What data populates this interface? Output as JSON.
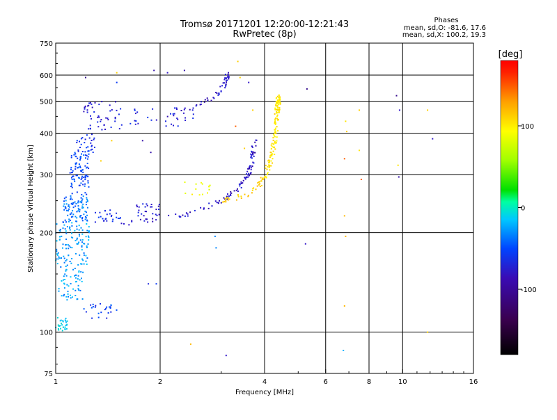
{
  "chart_data": {
    "type": "scatter",
    "title": "Tromsø 20171201 12:20:00-12:21:43",
    "subtitle": "RwPretec (8p)",
    "stats": {
      "heading": "Phases",
      "line1": "mean, sd,O: -81.6, 17.6",
      "line2": "mean, sd,X: 100.2, 19.3"
    },
    "xlabel": "Frequency [MHz]",
    "ylabel": "Stationary phase Virtual Height [km]",
    "x_scale": "log",
    "y_scale": "log",
    "xlim": [
      1,
      16
    ],
    "ylim": [
      75,
      750
    ],
    "grid": true,
    "x_ticks": [
      {
        "v": 1,
        "label": "1"
      },
      {
        "v": 2,
        "label": "2"
      },
      {
        "v": 4,
        "label": "4"
      },
      {
        "v": 6,
        "label": "6"
      },
      {
        "v": 8,
        "label": "8"
      },
      {
        "v": 10,
        "label": "10"
      },
      {
        "v": 16,
        "label": "16"
      }
    ],
    "x_grid": [
      2,
      4,
      6,
      8,
      10
    ],
    "y_ticks": [
      {
        "v": 75,
        "label": "75"
      },
      {
        "v": 100,
        "label": "100"
      },
      {
        "v": 200,
        "label": "200"
      },
      {
        "v": 300,
        "label": "300"
      },
      {
        "v": 400,
        "label": "400"
      },
      {
        "v": 500,
        "label": "500"
      },
      {
        "v": 600,
        "label": "600"
      },
      {
        "v": 750,
        "label": "750"
      }
    ],
    "y_grid": [
      100,
      200,
      300,
      400,
      500,
      600
    ],
    "colorbar": {
      "label": "[deg]",
      "range": [
        -180,
        180
      ],
      "ticks": [
        {
          "v": 100,
          "label": "100"
        },
        {
          "v": 0,
          "label": "0"
        },
        {
          "v": -100,
          "label": "-100"
        }
      ],
      "colormap": "rainbow-black-violet-blue-cyan-green-yellow-orange-red"
    },
    "clusters": [
      {
        "f": [
          1.0,
          1.08
        ],
        "h": [
          100,
          112
        ],
        "phase": -40,
        "spread_phase": 10,
        "n": 30
      },
      {
        "f": [
          1.02,
          1.2
        ],
        "h": [
          125,
          160
        ],
        "phase": -55,
        "spread_phase": 12,
        "n": 60
      },
      {
        "f": [
          1.0,
          1.25
        ],
        "h": [
          160,
          215
        ],
        "phase": -55,
        "spread_phase": 12,
        "n": 110
      },
      {
        "f": [
          1.05,
          1.25
        ],
        "h": [
          215,
          260
        ],
        "phase": -65,
        "spread_phase": 12,
        "n": 90
      },
      {
        "f": [
          1.1,
          1.25
        ],
        "h": [
          260,
          350
        ],
        "phase": -75,
        "spread_phase": 10,
        "n": 90
      },
      {
        "f": [
          1.15,
          1.3
        ],
        "h": [
          350,
          400
        ],
        "phase": -85,
        "spread_phase": 10,
        "n": 30
      },
      {
        "f": [
          1.2,
          1.55
        ],
        "h": [
          410,
          500
        ],
        "phase": -95,
        "spread_phase": 10,
        "n": 50
      },
      {
        "f": [
          1.2,
          1.5
        ],
        "h": [
          110,
          122
        ],
        "phase": -80,
        "spread_phase": 15,
        "n": 25
      },
      {
        "f": [
          1.3,
          1.55
        ],
        "h": [
          215,
          235
        ],
        "phase": -85,
        "spread_phase": 10,
        "n": 25
      },
      {
        "f": [
          1.6,
          2.5
        ],
        "h": [
          420,
          480
        ],
        "phase": -90,
        "spread_phase": 10,
        "n": 30
      },
      {
        "f": [
          1.7,
          2.0
        ],
        "h": [
          225,
          245
        ],
        "phase": -95,
        "spread_phase": 10,
        "n": 25
      },
      {
        "f": [
          2.3,
          2.8
        ],
        "h": [
          260,
          290
        ],
        "phase": 85,
        "spread_phase": 15,
        "n": 14
      }
    ],
    "curves": [
      {
        "name": "o-lower",
        "pts": [
          [
            1.55,
            213
          ],
          [
            2.0,
            220
          ],
          [
            2.5,
            230
          ],
          [
            3.0,
            250
          ],
          [
            3.4,
            275
          ],
          [
            3.6,
            300
          ],
          [
            3.7,
            340
          ],
          [
            3.75,
            380
          ]
        ],
        "phase": -100,
        "spread_phase": 12,
        "n": 110
      },
      {
        "name": "x-lower",
        "pts": [
          [
            3.0,
            250
          ],
          [
            3.3,
            255
          ],
          [
            3.6,
            262
          ],
          [
            3.85,
            280
          ],
          [
            4.0,
            295
          ]
        ],
        "phase": 110,
        "spread_phase": 10,
        "n": 40
      },
      {
        "name": "o-upper",
        "pts": [
          [
            2.0,
            445
          ],
          [
            2.4,
            470
          ],
          [
            2.8,
            510
          ],
          [
            3.0,
            540
          ],
          [
            3.1,
            580
          ],
          [
            3.15,
            615
          ]
        ],
        "phase": -100,
        "spread_phase": 10,
        "n": 55
      },
      {
        "name": "x-upper",
        "pts": [
          [
            4.0,
            295
          ],
          [
            4.2,
            340
          ],
          [
            4.3,
            400
          ],
          [
            4.35,
            470
          ],
          [
            4.4,
            520
          ]
        ],
        "phase": 100,
        "spread_phase": 12,
        "n": 140
      }
    ],
    "scatter_points": [
      {
        "f": 1.22,
        "h": 590,
        "phase": -120
      },
      {
        "f": 1.5,
        "h": 610,
        "phase": 110
      },
      {
        "f": 1.92,
        "h": 620,
        "phase": -110
      },
      {
        "f": 2.1,
        "h": 610,
        "phase": -100
      },
      {
        "f": 1.5,
        "h": 570,
        "phase": -80
      },
      {
        "f": 2.45,
        "h": 92,
        "phase": 120
      },
      {
        "f": 3.1,
        "h": 85,
        "phase": -100
      },
      {
        "f": 1.78,
        "h": 380,
        "phase": -110
      },
      {
        "f": 1.95,
        "h": 140,
        "phase": -80
      },
      {
        "f": 1.88,
        "h": 350,
        "phase": -110
      },
      {
        "f": 1.85,
        "h": 140,
        "phase": -90
      },
      {
        "f": 2.88,
        "h": 195,
        "phase": -60
      },
      {
        "f": 2.9,
        "h": 180,
        "phase": -60
      },
      {
        "f": 5.3,
        "h": 545,
        "phase": -120
      },
      {
        "f": 5.25,
        "h": 185,
        "phase": -100
      },
      {
        "f": 6.85,
        "h": 435,
        "phase": 100
      },
      {
        "f": 6.9,
        "h": 405,
        "phase": 110
      },
      {
        "f": 6.8,
        "h": 335,
        "phase": 150
      },
      {
        "f": 6.8,
        "h": 225,
        "phase": 120
      },
      {
        "f": 6.85,
        "h": 195,
        "phase": 120
      },
      {
        "f": 6.8,
        "h": 120,
        "phase": 120
      },
      {
        "f": 6.75,
        "h": 88,
        "phase": -50
      },
      {
        "f": 7.5,
        "h": 470,
        "phase": 110
      },
      {
        "f": 7.5,
        "h": 355,
        "phase": 100
      },
      {
        "f": 7.6,
        "h": 290,
        "phase": 150
      },
      {
        "f": 9.6,
        "h": 520,
        "phase": -120
      },
      {
        "f": 9.8,
        "h": 470,
        "phase": -100
      },
      {
        "f": 9.7,
        "h": 320,
        "phase": 100
      },
      {
        "f": 9.75,
        "h": 295,
        "phase": -110
      },
      {
        "f": 11.8,
        "h": 470,
        "phase": 110
      },
      {
        "f": 12.2,
        "h": 385,
        "phase": -100
      },
      {
        "f": 11.8,
        "h": 100,
        "phase": 110
      },
      {
        "f": 3.35,
        "h": 660,
        "phase": 110
      },
      {
        "f": 3.4,
        "h": 590,
        "phase": 110
      },
      {
        "f": 3.6,
        "h": 570,
        "phase": -100
      },
      {
        "f": 3.7,
        "h": 470,
        "phase": 110
      },
      {
        "f": 3.3,
        "h": 420,
        "phase": 150
      },
      {
        "f": 3.5,
        "h": 360,
        "phase": 110
      },
      {
        "f": 2.35,
        "h": 620,
        "phase": -110
      },
      {
        "f": 1.45,
        "h": 380,
        "phase": 110
      },
      {
        "f": 1.35,
        "h": 330,
        "phase": 110
      }
    ]
  }
}
